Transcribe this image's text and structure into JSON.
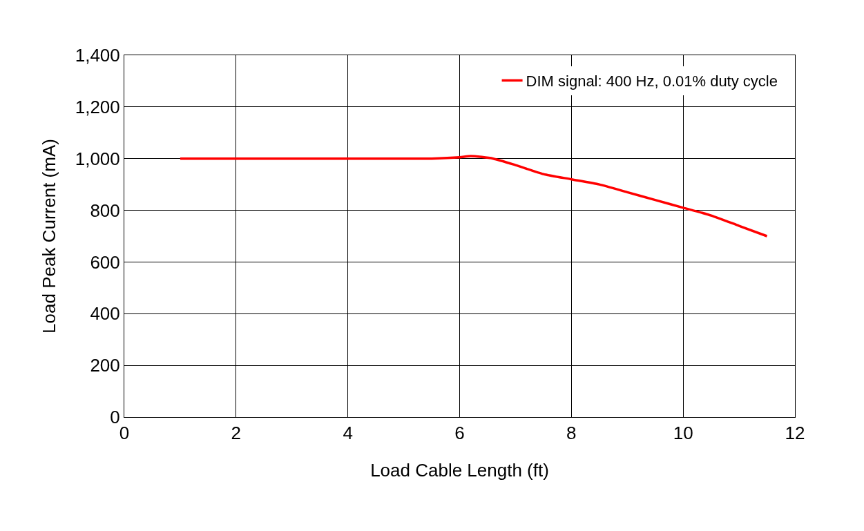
{
  "chart_data": {
    "type": "line",
    "xlabel": "Load Cable Length (ft)",
    "ylabel": "Load Peak Current (mA)",
    "x": [
      1,
      2,
      3,
      4,
      5,
      5.5,
      6,
      6.2,
      6.6,
      7,
      7.5,
      8,
      8.5,
      9,
      9.5,
      10,
      10.5,
      11,
      11.5
    ],
    "series": [
      {
        "name": "DIM signal: 400 Hz, 0.01% duty cycle",
        "color": "#ff0000",
        "values": [
          1000,
          1000,
          1000,
          1000,
          1000,
          1000,
          1005,
          1010,
          1000,
          975,
          940,
          920,
          900,
          870,
          840,
          810,
          780,
          740,
          700
        ]
      }
    ],
    "xlim": [
      0,
      12
    ],
    "xticks": [
      0,
      2,
      4,
      6,
      8,
      10,
      12
    ],
    "ylim": [
      0,
      1400
    ],
    "yticks": [
      {
        "value": 0,
        "label": "0"
      },
      {
        "value": 200,
        "label": "200"
      },
      {
        "value": 400,
        "label": "400"
      },
      {
        "value": 600,
        "label": "600"
      },
      {
        "value": 800,
        "label": "800"
      },
      {
        "value": 1000,
        "label": "1,000"
      },
      {
        "value": 1200,
        "label": "1,200"
      },
      {
        "value": 1400,
        "label": "1,400"
      }
    ],
    "grid": true,
    "legend": "top right",
    "marker": "none",
    "line_style": "solid"
  }
}
